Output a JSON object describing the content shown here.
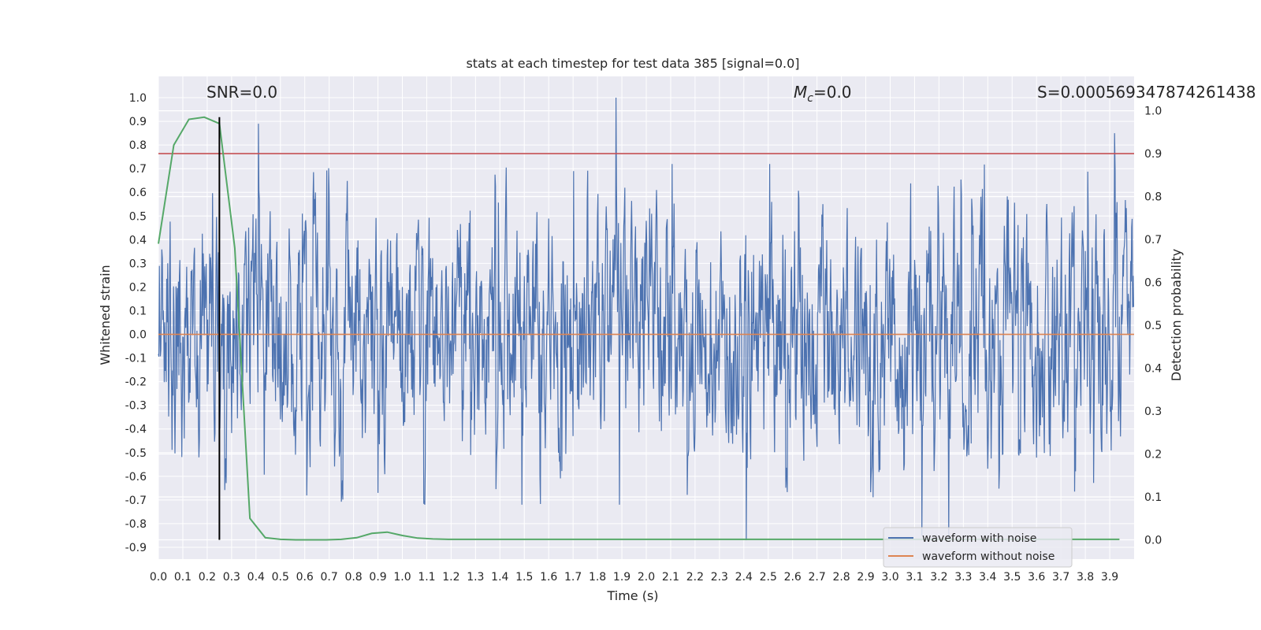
{
  "chart_data": {
    "type": "line",
    "title": "stats at each timestep for test data 385 [signal=0.0]",
    "xlabel": "Time (s)",
    "ylabel": "Whitened strain",
    "y2label": "Detection probability",
    "xlim": [
      0.0,
      4.0
    ],
    "ylim": [
      -0.95,
      1.09
    ],
    "y2lim": [
      -0.045,
      1.08
    ],
    "x_ticks": [
      "0.0",
      "0.1",
      "0.2",
      "0.3",
      "0.4",
      "0.5",
      "0.6",
      "0.7",
      "0.8",
      "0.9",
      "1.0",
      "1.1",
      "1.2",
      "1.3",
      "1.4",
      "1.5",
      "1.6",
      "1.7",
      "1.8",
      "1.9",
      "2.0",
      "2.1",
      "2.2",
      "2.3",
      "2.4",
      "2.5",
      "2.6",
      "2.7",
      "2.8",
      "2.9",
      "3.0",
      "3.1",
      "3.2",
      "3.3",
      "3.4",
      "3.5",
      "3.6",
      "3.7",
      "3.8",
      "3.9"
    ],
    "y_ticks": [
      "1.0",
      "0.9",
      "0.8",
      "0.7",
      "0.6",
      "0.5",
      "0.4",
      "0.3",
      "0.2",
      "0.1",
      "0.0",
      "-0.1",
      "-0.2",
      "-0.3",
      "-0.4",
      "-0.5",
      "-0.6",
      "-0.7",
      "-0.8",
      "-0.9"
    ],
    "y2_ticks": [
      "1.0",
      "0.9",
      "0.8",
      "0.7",
      "0.6",
      "0.5",
      "0.4",
      "0.3",
      "0.2",
      "0.1",
      "0.0"
    ],
    "annotations": {
      "snr": "SNR=0.0",
      "mc": "=0.0",
      "mc_symbol": "M",
      "mc_subscript": "c",
      "s": "S=0.000569347874261438"
    },
    "threshold": 0.9,
    "marker_time": 0.25,
    "legend": [
      "waveform with noise",
      "waveform without noise"
    ],
    "series": [
      {
        "name": "waveform with noise",
        "color": "#4c72b0",
        "description": "whitened noise, approx. amplitude +/-0.6 with spikes to 1.0 and -0.87",
        "spikes": [
          [
            0.41,
            0.89
          ],
          [
            1.875,
            1.0
          ],
          [
            2.41,
            -0.87
          ],
          [
            3.92,
            0.85
          ],
          [
            3.13,
            -0.85
          ],
          [
            3.24,
            -0.86
          ]
        ]
      },
      {
        "name": "waveform without noise",
        "color": "#dd8452",
        "x": [
          0.0,
          4.0
        ],
        "y": [
          0.0,
          0.0
        ]
      },
      {
        "name": "detection probability",
        "color": "#55a868",
        "axis": "right",
        "x": [
          0.0,
          0.063,
          0.125,
          0.188,
          0.25,
          0.313,
          0.375,
          0.438,
          0.5,
          0.563,
          0.625,
          0.688,
          0.75,
          0.813,
          0.875,
          0.938,
          1.0,
          1.063,
          1.125,
          1.188,
          1.25,
          1.5,
          2.0,
          2.5,
          3.0,
          3.5,
          3.94
        ],
        "y": [
          0.69,
          0.92,
          0.98,
          0.985,
          0.97,
          0.68,
          0.05,
          0.005,
          0.001,
          0.0,
          0.0,
          0.0,
          0.001,
          0.005,
          0.015,
          0.018,
          0.01,
          0.004,
          0.002,
          0.001,
          0.001,
          0.001,
          0.001,
          0.001,
          0.001,
          0.001,
          0.001
        ]
      }
    ]
  }
}
